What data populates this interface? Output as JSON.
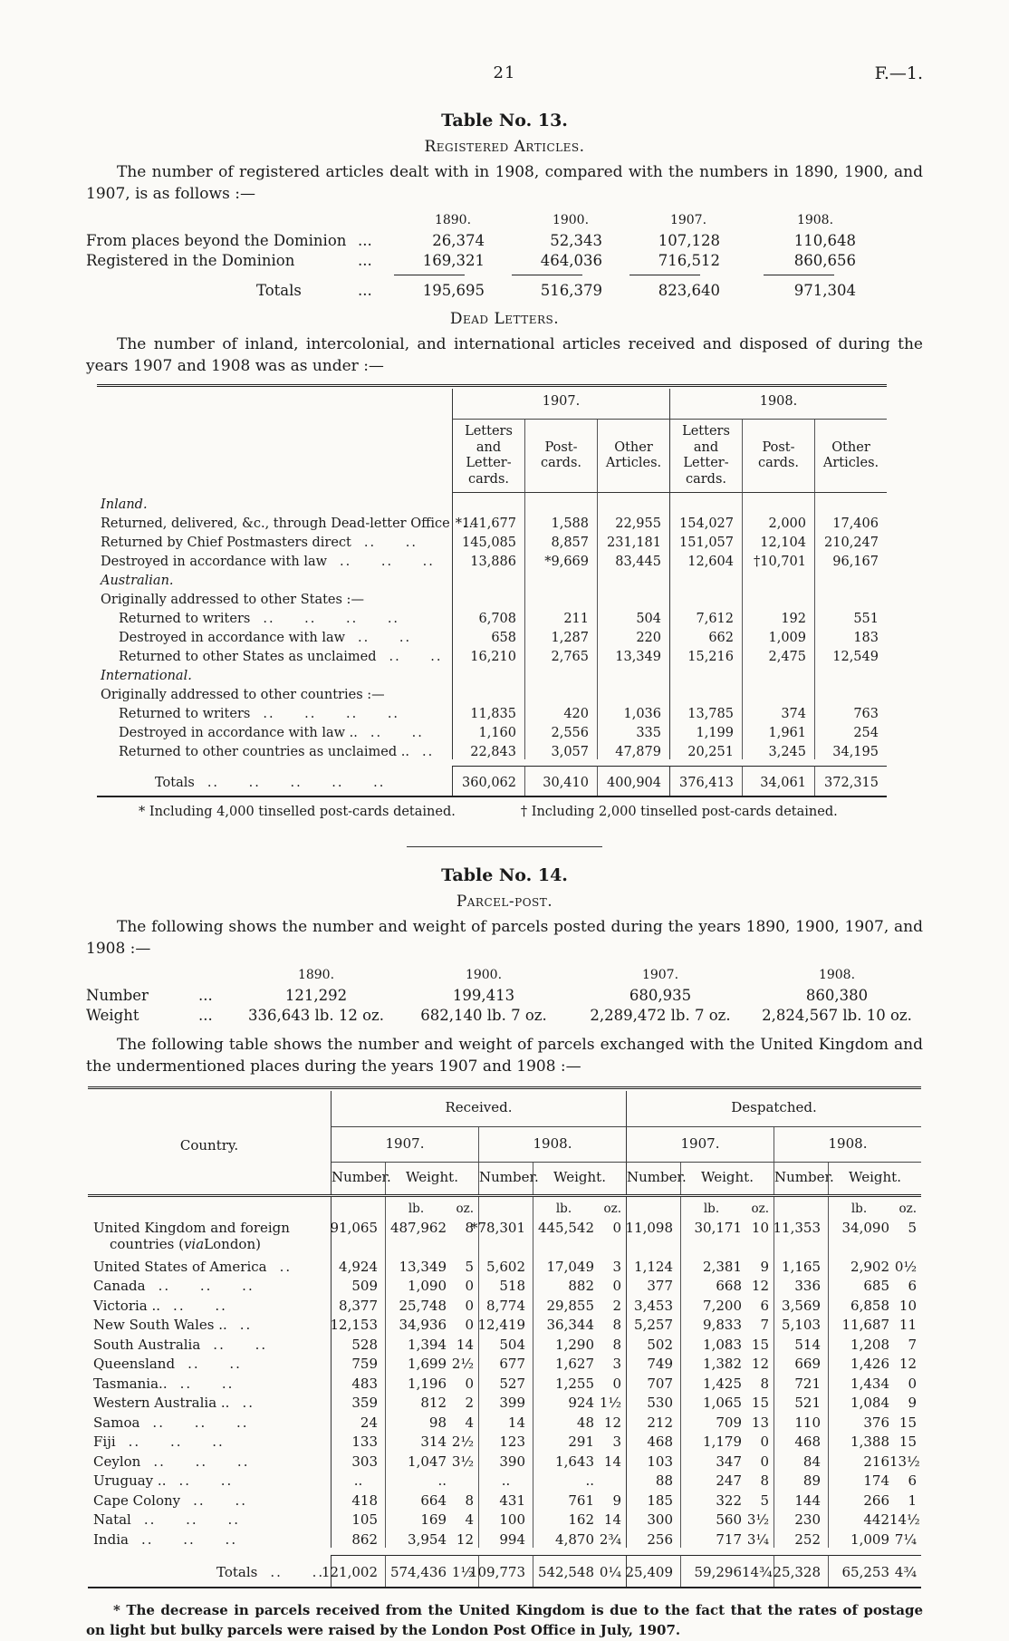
{
  "page": {
    "number": "21",
    "folio": "F.—1."
  },
  "table13": {
    "title": "Table No. 13.",
    "subtitle": "Registered Articles.",
    "intro": "The number of registered articles dealt with in 1908, compared with the numbers in 1890, 1900, and 1907, is as follows :—",
    "years": [
      "1890.",
      "1900.",
      "1907.",
      "1908."
    ],
    "rows": [
      {
        "label": "From places beyond the Dominion",
        "dots": "...",
        "values": [
          "26,374",
          "52,343",
          "107,128",
          "110,648"
        ]
      },
      {
        "label": "Registered in the Dominion",
        "dots": "...",
        "values": [
          "169,321",
          "464,036",
          "716,512",
          "860,656"
        ]
      }
    ],
    "totals": {
      "label": "Totals",
      "dots": "...",
      "values": [
        "195,695",
        "516,379",
        "823,640",
        "971,304"
      ]
    }
  },
  "deadletters": {
    "title": "Dead Letters.",
    "intro": "The number of inland, intercolonial, and international articles received and disposed of during the years 1907 and 1908 was as under :—",
    "year_headers": [
      "1907.",
      "1908."
    ],
    "col_headers": [
      "Letters and Letter-cards.",
      "Post-cards.",
      "Other Articles.",
      "Letters and Letter-cards.",
      "Post-cards.",
      "Other Articles."
    ],
    "sections": [
      {
        "heading": "Inland.",
        "sub": "",
        "indent": false,
        "rows": [
          {
            "label": "Returned, delivered, &c., through Dead-letter Office",
            "dots": "..",
            "values": [
              "*141,677",
              "1,588",
              "22,955",
              "154,027",
              "2,000",
              "17,406"
            ]
          },
          {
            "label": "Returned by Chief Postmasters direct",
            "dots": ".. ..",
            "values": [
              "145,085",
              "8,857",
              "231,181",
              "151,057",
              "12,104",
              "210,247"
            ]
          },
          {
            "label": "Destroyed in accordance with law",
            "dots": ".. .. ..",
            "values": [
              "13,886",
              "*9,669",
              "83,445",
              "12,604",
              "†10,701",
              "96,167"
            ]
          }
        ]
      },
      {
        "heading": "Australian.",
        "sub": "Originally addressed to other States :—",
        "indent": true,
        "rows": [
          {
            "label": "Returned to writers",
            "dots": ".. .. .. ..",
            "values": [
              "6,708",
              "211",
              "504",
              "7,612",
              "192",
              "551"
            ]
          },
          {
            "label": "Destroyed in accordance with law",
            "dots": ".. ..",
            "values": [
              "658",
              "1,287",
              "220",
              "662",
              "1,009",
              "183"
            ]
          },
          {
            "label": "Returned to other States as unclaimed",
            "dots": ".. ..",
            "values": [
              "16,210",
              "2,765",
              "13,349",
              "15,216",
              "2,475",
              "12,549"
            ]
          }
        ]
      },
      {
        "heading": "International.",
        "sub": "Originally addressed to other countries :—",
        "indent": true,
        "rows": [
          {
            "label": "Returned to writers",
            "dots": ".. .. .. ..",
            "values": [
              "11,835",
              "420",
              "1,036",
              "13,785",
              "374",
              "763"
            ]
          },
          {
            "label": "Destroyed in accordance with law ..",
            "dots": ".. ..",
            "values": [
              "1,160",
              "2,556",
              "335",
              "1,199",
              "1,961",
              "254"
            ]
          },
          {
            "label": "Returned to other countries as unclaimed ..",
            "dots": "..",
            "values": [
              "22,843",
              "3,057",
              "47,879",
              "20,251",
              "3,245",
              "34,195"
            ]
          }
        ]
      }
    ],
    "totals": {
      "label": "Totals",
      "dots": ".. .. .. .. ..",
      "values": [
        "360,062",
        "30,410",
        "400,904",
        "376,413",
        "34,061",
        "372,315"
      ]
    },
    "footnote_left": "* Including 4,000 tinselled post-cards detained.",
    "footnote_right": "† Including 2,000 tinselled post-cards detained."
  },
  "table14": {
    "title": "Table No. 14.",
    "subtitle": "Parcel-post.",
    "intro": "The following shows the number and weight of parcels posted during the years 1890, 1900, 1907, and 1908 :—",
    "years": [
      "1890.",
      "1900.",
      "1907.",
      "1908."
    ],
    "rows": [
      {
        "label": "Number",
        "dots": "...",
        "values": [
          "121,292",
          "199,413",
          "680,935",
          "860,380"
        ]
      },
      {
        "label": "Weight",
        "dots": "...",
        "values": [
          "336,643 lb. 12 oz.",
          "682,140 lb. 7 oz.",
          "2,289,472 lb. 7 oz.",
          "2,824,567 lb. 10 oz."
        ]
      }
    ],
    "intro2": "The following table shows the number and weight of parcels exchanged with the United Kingdom and the undermentioned places during the years 1907 and 1908 :—"
  },
  "parcels": {
    "country_header": "Country.",
    "group_headers": [
      "Received.",
      "Despatched."
    ],
    "year_headers": [
      "1907.",
      "1908.",
      "1907.",
      "1908."
    ],
    "col_headers": [
      "Number.",
      "Weight.",
      "Number.",
      "Weight.",
      "Number.",
      "Weight.",
      "Number.",
      "Weight."
    ],
    "unit_lb": "lb.",
    "unit_oz": "oz.",
    "rows": [
      {
        "label": "United Kingdom and foreign",
        "label2_pre": "countries (",
        "label2_ital": "via",
        "label2_post": " London)",
        "dots": "",
        "cells": [
          "91,065",
          "487,962 8",
          "*78,301",
          "445,542 0",
          "11,098",
          "30,171 10",
          "11,353",
          "34,090 5"
        ]
      },
      {
        "label": "United States of America",
        "dots": "..",
        "cells": [
          "4,924",
          "13,349 5",
          "5,602",
          "17,049 3",
          "1,124",
          "2,381 9",
          "1,165",
          "2,902 0½"
        ]
      },
      {
        "label": "Canada",
        "dots": ".. .. ..",
        "cells": [
          "509",
          "1,090 0",
          "518",
          "882 0",
          "377",
          "668 12",
          "336",
          "685 6"
        ]
      },
      {
        "label": "Victoria ..",
        "dots": ".. ..",
        "cells": [
          "8,377",
          "25,748 0",
          "8,774",
          "29,855 2",
          "3,453",
          "7,200 6",
          "3,569",
          "6,858 10"
        ]
      },
      {
        "label": "New South Wales ..",
        "dots": "..",
        "cells": [
          "12,153",
          "34,936 0",
          "12,419",
          "36,344 8",
          "5,257",
          "9,833 7",
          "5,103",
          "11,687 11"
        ]
      },
      {
        "label": "South Australia",
        "dots": ".. ..",
        "cells": [
          "528",
          "1,394 14",
          "504",
          "1,290 8",
          "502",
          "1,083 15",
          "514",
          "1,208 7"
        ]
      },
      {
        "label": "Queensland",
        "dots": ".. ..",
        "cells": [
          "759",
          "1,699 2½",
          "677",
          "1,627 3",
          "749",
          "1,382 12",
          "669",
          "1,426 12"
        ]
      },
      {
        "label": "Tasmania..",
        "dots": ".. ..",
        "cells": [
          "483",
          "1,196 0",
          "527",
          "1,255 0",
          "707",
          "1,425 8",
          "721",
          "1,434 0"
        ]
      },
      {
        "label": "Western Australia ..",
        "dots": "..",
        "cells": [
          "359",
          "812 2",
          "399",
          "924 1½",
          "530",
          "1,065 15",
          "521",
          "1,084 9"
        ]
      },
      {
        "label": "Samoa",
        "dots": ".. .. ..",
        "cells": [
          "24",
          "98 4",
          "14",
          "48 12",
          "212",
          "709 13",
          "110",
          "376 15"
        ]
      },
      {
        "label": "Fiji",
        "dots": ".. .. ..",
        "cells": [
          "133",
          "314 2½",
          "123",
          "291 3",
          "468",
          "1,179 0",
          "468",
          "1,388 15"
        ]
      },
      {
        "label": "Ceylon",
        "dots": ".. .. ..",
        "cells": [
          "303",
          "1,047 3½",
          "390",
          "1,643 14",
          "103",
          "347 0",
          "84",
          "216 13½"
        ]
      },
      {
        "label": "Uruguay ..",
        "dots": ".. ..",
        "cells": [
          "..",
          "..",
          "..",
          "..",
          "88",
          "247 8",
          "89",
          "174 6"
        ]
      },
      {
        "label": "Cape Colony",
        "dots": ".. ..",
        "cells": [
          "418",
          "664 8",
          "431",
          "761 9",
          "185",
          "322 5",
          "144",
          "266 1"
        ]
      },
      {
        "label": "Natal",
        "dots": ".. .. ..",
        "cells": [
          "105",
          "169 4",
          "100",
          "162 14",
          "300",
          "560 3½",
          "230",
          "442 14½"
        ]
      },
      {
        "label": "India",
        "dots": ".. .. ..",
        "cells": [
          "862",
          "3,954 12",
          "994",
          "4,870 2¾",
          "256",
          "717 3¼",
          "252",
          "1,009 7¼"
        ]
      }
    ],
    "totals": {
      "label": "Totals",
      "dots": ".. ..",
      "cells": [
        "121,002",
        "574,436 1½",
        "109,773",
        "542,548 0¼",
        "25,409",
        "59,296 14¾",
        "25,328",
        "65,253 4¾"
      ]
    },
    "footnote": "* The decrease in parcels received from the United Kingdom is due to the fact that the rates of postage on light but bulky parcels were raised by the London Post Office in July, 1907."
  }
}
